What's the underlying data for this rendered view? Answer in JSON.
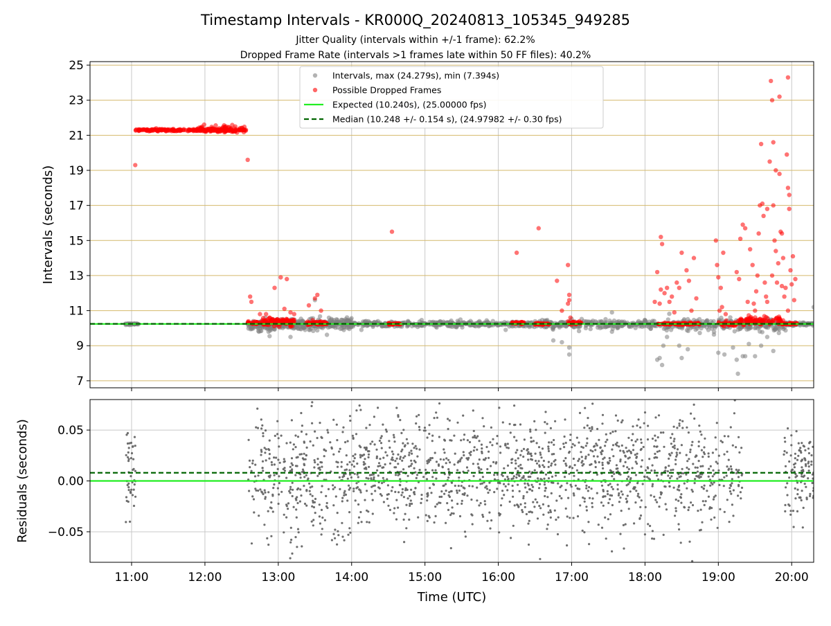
{
  "chart_data": [
    {
      "type": "scatter",
      "title": "Timestamp Intervals - KR000Q_20240813_105345_949285",
      "subtitle_lines": [
        "Jitter Quality (intervals within +/-1 frame): 62.2%",
        "Dropped Frame Rate (intervals >1 frames late within 50 FF files): 40.2%"
      ],
      "xlabel": "",
      "ylabel": "Intervals (seconds)",
      "xlim": [
        "10:26",
        "20:18"
      ],
      "ylim": [
        6.6,
        25.2
      ],
      "yticks": [
        7,
        9,
        11,
        13,
        15,
        17,
        19,
        21,
        23,
        25
      ],
      "xticks": [
        "11:00",
        "12:00",
        "13:00",
        "14:00",
        "15:00",
        "16:00",
        "17:00",
        "18:00",
        "19:00",
        "20:00"
      ],
      "show_xtick_labels": false,
      "grid": true,
      "legend_position": "top-center",
      "colors": {
        "intervals": "#808080",
        "dropped": "#ff0000",
        "expected": "#00ee00",
        "median": "#006400",
        "hgrid": "#d4b86a",
        "vgrid": "#c8c8c8"
      },
      "hlines": [
        {
          "name": "Expected (10.240s), (25.00000 fps)",
          "y": 10.24,
          "style": "solid",
          "color": "#22ee22"
        },
        {
          "name": "Median (10.248 +/- 0.154 s), (24.97982 +/- 0.30 fps)",
          "y": 10.248,
          "style": "dashed",
          "color": "#006400"
        }
      ],
      "series": [
        {
          "name": "Intervals, max (24.279s), min (7.394s)",
          "color": "#808080",
          "clusters": [
            {
              "t0": "10:55",
              "t1": "11:06",
              "y": 10.24,
              "sd": 0.02,
              "n": 40
            },
            {
              "t0": "12:35",
              "t1": "13:00",
              "y": 10.15,
              "sd": 0.15,
              "n": 90
            },
            {
              "t0": "13:00",
              "t1": "14:00",
              "y": 10.25,
              "sd": 0.15,
              "n": 280
            },
            {
              "t0": "14:00",
              "t1": "16:30",
              "y": 10.24,
              "sd": 0.08,
              "n": 420
            },
            {
              "t0": "16:30",
              "t1": "18:15",
              "y": 10.22,
              "sd": 0.1,
              "n": 280
            },
            {
              "t0": "18:15",
              "t1": "19:55",
              "y": 10.2,
              "sd": 0.18,
              "n": 280
            },
            {
              "t0": "19:55",
              "t1": "20:18",
              "y": 10.24,
              "sd": 0.05,
              "n": 70
            }
          ],
          "points": [
            [
              "16:45",
              9.3
            ],
            [
              "16:52",
              9.2
            ],
            [
              "16:58",
              8.9
            ],
            [
              "16:58",
              8.5
            ],
            [
              "17:33",
              9.8
            ],
            [
              "17:33",
              10.9
            ],
            [
              "18:10",
              8.2
            ],
            [
              "18:12",
              8.3
            ],
            [
              "18:14",
              7.9
            ],
            [
              "18:15",
              9.0
            ],
            [
              "18:18",
              9.5
            ],
            [
              "18:28",
              9.0
            ],
            [
              "18:30",
              8.3
            ],
            [
              "18:35",
              8.8
            ],
            [
              "19:00",
              8.6
            ],
            [
              "19:05",
              8.5
            ],
            [
              "19:12",
              8.9
            ],
            [
              "19:15",
              8.2
            ],
            [
              "19:16",
              7.4
            ],
            [
              "19:20",
              8.4
            ],
            [
              "19:22",
              8.4
            ],
            [
              "19:25",
              9.1
            ],
            [
              "19:30",
              8.4
            ],
            [
              "19:35",
              9.0
            ],
            [
              "19:40",
              9.5
            ],
            [
              "19:45",
              8.7
            ],
            [
              "20:18",
              11.2
            ],
            [
              "13:26",
              9.9
            ],
            [
              "13:30",
              11.6
            ],
            [
              "14:08",
              9.9
            ],
            [
              "12:52",
              9.8
            ],
            [
              "13:10",
              9.5
            ],
            [
              "16:06",
              9.9
            ]
          ]
        },
        {
          "name": "Possible Dropped Frames",
          "color": "#ff0000",
          "clusters": [
            {
              "t0": "11:02",
              "t1": "12:34",
              "y": 21.3,
              "sd": 0.03,
              "n": 230
            },
            {
              "t0": "11:55",
              "t1": "12:34",
              "y": 21.35,
              "sd": 0.1,
              "n": 70
            },
            {
              "t0": "12:35",
              "t1": "12:45",
              "y": 10.3,
              "sd": 0.04,
              "n": 30
            },
            {
              "t0": "12:47",
              "t1": "13:13",
              "y": 10.35,
              "sd": 0.1,
              "n": 110
            },
            {
              "t0": "13:23",
              "t1": "13:40",
              "y": 10.3,
              "sd": 0.06,
              "n": 50
            },
            {
              "t0": "14:30",
              "t1": "14:40",
              "y": 10.25,
              "sd": 0.02,
              "n": 25
            },
            {
              "t0": "16:11",
              "t1": "16:21",
              "y": 10.3,
              "sd": 0.03,
              "n": 25
            },
            {
              "t0": "16:30",
              "t1": "16:42",
              "y": 10.25,
              "sd": 0.03,
              "n": 30
            },
            {
              "t0": "16:57",
              "t1": "17:08",
              "y": 10.3,
              "sd": 0.05,
              "n": 30
            },
            {
              "t0": "18:10",
              "t1": "18:45",
              "y": 10.25,
              "sd": 0.03,
              "n": 90
            },
            {
              "t0": "19:00",
              "t1": "19:15",
              "y": 10.25,
              "sd": 0.05,
              "n": 40
            },
            {
              "t0": "19:15",
              "t1": "19:55",
              "y": 10.4,
              "sd": 0.12,
              "n": 100
            },
            {
              "t0": "19:52",
              "t1": "20:05",
              "y": 10.25,
              "sd": 0.03,
              "n": 30
            }
          ],
          "points": [
            [
              "11:03",
              19.3
            ],
            [
              "12:35",
              19.6
            ],
            [
              "12:37",
              11.8
            ],
            [
              "12:38",
              11.5
            ],
            [
              "12:45",
              10.8
            ],
            [
              "12:50",
              10.8
            ],
            [
              "12:57",
              12.3
            ],
            [
              "13:02",
              12.9
            ],
            [
              "13:07",
              12.8
            ],
            [
              "13:05",
              11.1
            ],
            [
              "13:10",
              10.9
            ],
            [
              "13:13",
              10.8
            ],
            [
              "13:25",
              11.3
            ],
            [
              "13:30",
              11.7
            ],
            [
              "13:32",
              11.9
            ],
            [
              "13:35",
              11.0
            ],
            [
              "14:33",
              15.5
            ],
            [
              "16:15",
              14.3
            ],
            [
              "16:33",
              15.7
            ],
            [
              "16:48",
              12.7
            ],
            [
              "16:52",
              11.0
            ],
            [
              "16:57",
              13.6
            ],
            [
              "16:58",
              11.9
            ],
            [
              "16:58",
              11.6
            ],
            [
              "16:57",
              11.4
            ],
            [
              "16:59",
              10.6
            ],
            [
              "18:08",
              11.5
            ],
            [
              "18:10",
              13.2
            ],
            [
              "18:13",
              15.2
            ],
            [
              "18:14",
              14.8
            ],
            [
              "18:13",
              12.2
            ],
            [
              "18:12",
              11.4
            ],
            [
              "18:16",
              12.0
            ],
            [
              "18:18",
              12.3
            ],
            [
              "18:20",
              11.5
            ],
            [
              "18:22",
              11.8
            ],
            [
              "18:24",
              10.9
            ],
            [
              "18:26",
              12.6
            ],
            [
              "18:28",
              12.3
            ],
            [
              "18:30",
              14.3
            ],
            [
              "18:34",
              13.3
            ],
            [
              "18:36",
              12.7
            ],
            [
              "18:38",
              11.0
            ],
            [
              "18:40",
              14.0
            ],
            [
              "18:42",
              11.7
            ],
            [
              "18:58",
              15.0
            ],
            [
              "18:59",
              13.6
            ],
            [
              "19:00",
              12.9
            ],
            [
              "19:02",
              12.3
            ],
            [
              "19:03",
              11.2
            ],
            [
              "19:01",
              11.0
            ],
            [
              "19:04",
              14.3
            ],
            [
              "19:06",
              10.8
            ],
            [
              "19:15",
              13.2
            ],
            [
              "19:17",
              12.8
            ],
            [
              "19:18",
              15.1
            ],
            [
              "19:20",
              15.9
            ],
            [
              "19:22",
              15.7
            ],
            [
              "19:24",
              11.5
            ],
            [
              "19:26",
              14.5
            ],
            [
              "19:28",
              13.6
            ],
            [
              "19:29",
              11.4
            ],
            [
              "19:30",
              11.0
            ],
            [
              "19:31",
              12.1
            ],
            [
              "19:32",
              13.0
            ],
            [
              "19:33",
              15.4
            ],
            [
              "19:34",
              17.0
            ],
            [
              "19:35",
              20.5
            ],
            [
              "19:36",
              17.1
            ],
            [
              "19:37",
              16.4
            ],
            [
              "19:38",
              12.6
            ],
            [
              "19:39",
              11.8
            ],
            [
              "19:40",
              11.5
            ],
            [
              "19:42",
              19.5
            ],
            [
              "19:43",
              24.1
            ],
            [
              "19:44",
              23.0
            ],
            [
              "19:45",
              20.6
            ],
            [
              "19:45",
              17.0
            ],
            [
              "19:46",
              15.0
            ],
            [
              "19:47",
              19.0
            ],
            [
              "19:47",
              14.4
            ],
            [
              "19:48",
              12.6
            ],
            [
              "19:49",
              13.7
            ],
            [
              "19:50",
              18.8
            ],
            [
              "19:50",
              23.2
            ],
            [
              "19:51",
              15.5
            ],
            [
              "19:52",
              15.4
            ],
            [
              "19:53",
              14.0
            ],
            [
              "19:54",
              11.8
            ],
            [
              "19:55",
              12.3
            ],
            [
              "19:56",
              19.9
            ],
            [
              "19:57",
              24.3
            ],
            [
              "19:57",
              18.0
            ],
            [
              "19:58",
              17.6
            ],
            [
              "19:58",
              16.8
            ],
            [
              "19:59",
              13.3
            ],
            [
              "20:00",
              12.5
            ],
            [
              "20:01",
              14.1
            ],
            [
              "20:02",
              11.6
            ],
            [
              "20:03",
              12.8
            ],
            [
              "19:40",
              16.8
            ],
            [
              "19:44",
              13.0
            ],
            [
              "19:52",
              12.4
            ],
            [
              "19:57",
              11.0
            ]
          ]
        }
      ]
    },
    {
      "type": "scatter",
      "xlabel": "Time (UTC)",
      "ylabel": "Residuals (seconds)",
      "xlim": [
        "10:26",
        "20:18"
      ],
      "ylim": [
        -0.08,
        0.08
      ],
      "yticks": [
        0.05,
        0.0,
        -0.05
      ],
      "ytick_labels": [
        "0.05",
        "0.00",
        "−0.05"
      ],
      "xticks": [
        "11:00",
        "12:00",
        "13:00",
        "14:00",
        "15:00",
        "16:00",
        "17:00",
        "18:00",
        "19:00",
        "20:00"
      ],
      "xtick_labels": [
        "11:00",
        "12:00",
        "13:00",
        "14:00",
        "15:00",
        "16:00",
        "17:00",
        "18:00",
        "19:00",
        "20:00"
      ],
      "grid": true,
      "hlines": [
        {
          "y": 0.0,
          "style": "solid",
          "color": "#22ee22"
        },
        {
          "y": 0.008,
          "style": "dashed",
          "color": "#006400"
        }
      ],
      "series": [
        {
          "color": "#666666",
          "clusters": [
            {
              "t0": "10:55",
              "t1": "11:04",
              "y": 0.005,
              "sd": 0.022,
              "n": 45
            },
            {
              "t0": "12:35",
              "t1": "14:00",
              "y": 0.003,
              "sd": 0.032,
              "n": 330
            },
            {
              "t0": "14:00",
              "t1": "17:00",
              "y": 0.008,
              "sd": 0.028,
              "n": 750
            },
            {
              "t0": "17:00",
              "t1": "18:50",
              "y": 0.008,
              "sd": 0.028,
              "n": 470
            },
            {
              "t0": "18:50",
              "t1": "19:20",
              "y": 0.005,
              "sd": 0.025,
              "n": 90
            },
            {
              "t0": "19:53",
              "t1": "20:18",
              "y": 0.005,
              "sd": 0.022,
              "n": 110
            }
          ]
        }
      ]
    }
  ]
}
